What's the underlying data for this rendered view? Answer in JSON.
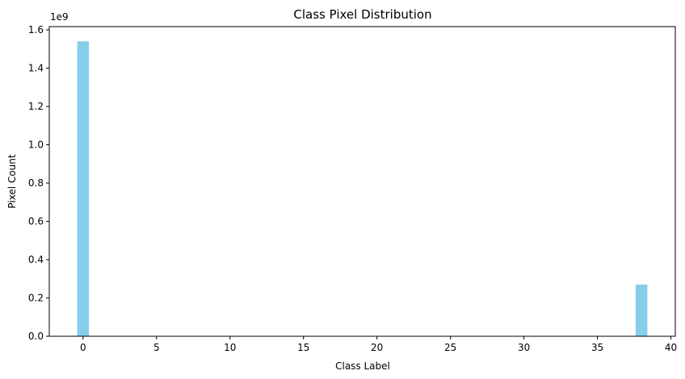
{
  "chart_data": {
    "type": "bar",
    "title": "Class Pixel Distribution",
    "xlabel": "Class Label",
    "ylabel": "Pixel Count",
    "y_offset_label": "1e9",
    "x_values": [
      0,
      38
    ],
    "values": [
      1.54,
      0.27
    ],
    "value_scale": "1e9",
    "bar_width": 0.8,
    "xlim": [
      -2.3,
      40.3
    ],
    "ylim": [
      0,
      1.617
    ],
    "x_ticks": [
      0,
      5,
      10,
      15,
      20,
      25,
      30,
      35,
      40
    ],
    "x_tick_labels": [
      "0",
      "5",
      "10",
      "15",
      "20",
      "25",
      "30",
      "35",
      "40"
    ],
    "y_ticks": [
      0.0,
      0.2,
      0.4,
      0.6,
      0.8,
      1.0,
      1.2,
      1.4,
      1.6
    ],
    "y_tick_labels": [
      "0.0",
      "0.2",
      "0.4",
      "0.6",
      "0.8",
      "1.0",
      "1.2",
      "1.4",
      "1.6"
    ],
    "bar_color": "#87ceeb",
    "grid": false
  }
}
